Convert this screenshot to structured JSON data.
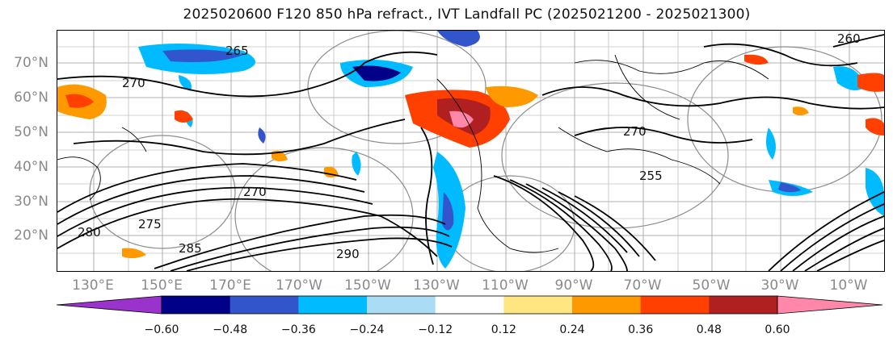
{
  "title": "2025020600 F120 850 hPa refract., IVT Landfall PC (2025021200 - 2025021300)",
  "lat_labels": [
    "70°N",
    "60°N",
    "50°N",
    "40°N",
    "30°N",
    "20°N"
  ],
  "lon_labels": [
    "130°E",
    "150°E",
    "170°E",
    "170°W",
    "150°W",
    "130°W",
    "110°W",
    "90°W",
    "70°W",
    "50°W",
    "30°W",
    "10°W"
  ],
  "contour_labels": [
    "265",
    "270",
    "275",
    "280",
    "285",
    "290",
    "255",
    "260",
    "270",
    "270"
  ],
  "colorbar": {
    "tick_labels": [
      "−0.60",
      "−0.48",
      "−0.36",
      "−0.24",
      "−0.12",
      "0.12",
      "0.24",
      "0.36",
      "0.48",
      "0.60"
    ],
    "colors": [
      "#9933cc",
      "#000088",
      "#3355cc",
      "#00bbff",
      "#aaddf5",
      "#ffffff",
      "#ffe680",
      "#ff9900",
      "#ff4000",
      "#b02020",
      "#ff88aa"
    ]
  },
  "palette": {
    "neg_strong": "#000088",
    "neg_mid": "#3355cc",
    "neg_light": "#00bbff",
    "neg_faint": "#aaddf5",
    "pos_light": "#ffe680",
    "pos_mid": "#ff9900",
    "pos_strong": "#ff4000",
    "pos_dark": "#b02020",
    "pos_max": "#ff88aa"
  }
}
